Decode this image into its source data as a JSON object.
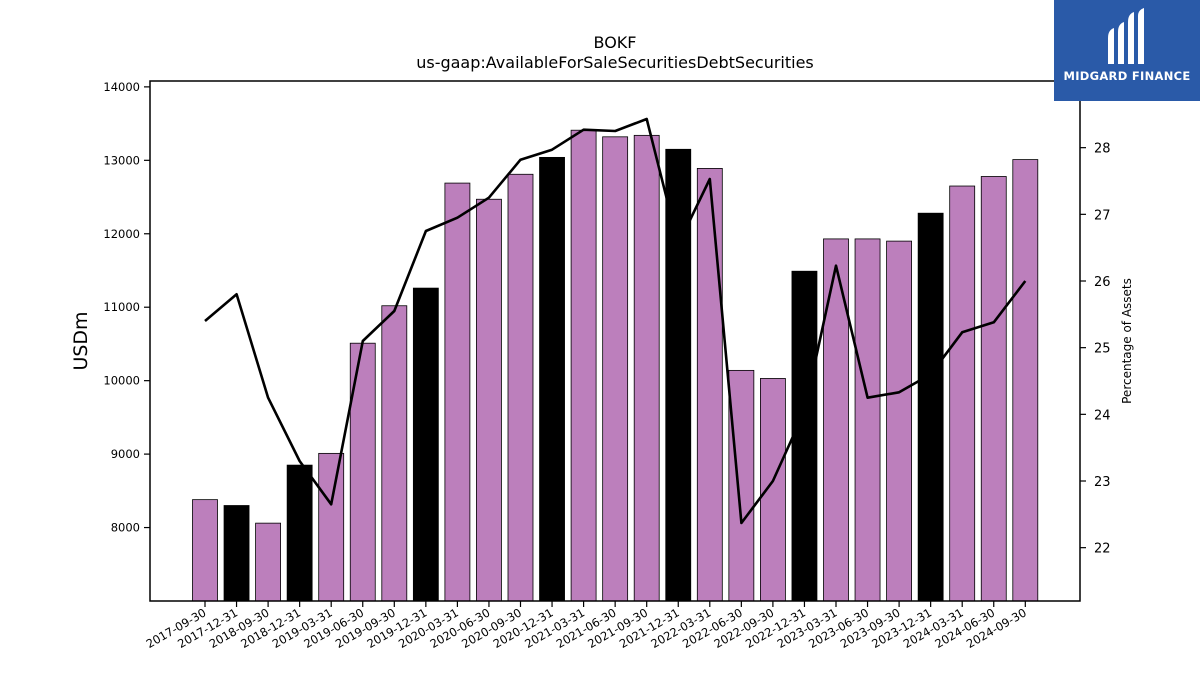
{
  "chart_data": {
    "type": "bar",
    "title": "BOKF",
    "subtitle": "us-gaap:AvailableForSaleSecuritiesDebtSecurities",
    "ylabel": "USDm",
    "y2label": "Percentage of Assets",
    "ylim": [
      7000,
      14080
    ],
    "y2lim": [
      21.2,
      29.0
    ],
    "yticks": [
      8000,
      9000,
      10000,
      11000,
      12000,
      13000,
      14000
    ],
    "y2ticks": [
      22,
      23,
      24,
      25,
      26,
      27,
      28
    ],
    "grid": false,
    "colors": {
      "bar_regular": "#bc7fbc",
      "bar_year_end": "#000000",
      "line": "#000000"
    },
    "categories": [
      "2017-09-30",
      "2017-12-31",
      "2018-09-30",
      "2018-12-31",
      "2019-03-31",
      "2019-06-30",
      "2019-09-30",
      "2019-12-31",
      "2020-03-31",
      "2020-06-30",
      "2020-09-30",
      "2020-12-31",
      "2021-03-31",
      "2021-06-30",
      "2021-09-30",
      "2021-12-31",
      "2022-03-31",
      "2022-06-30",
      "2022-09-30",
      "2022-12-31",
      "2023-03-31",
      "2023-06-30",
      "2023-09-30",
      "2023-12-31",
      "2024-03-31",
      "2024-06-30",
      "2024-09-30"
    ],
    "series": [
      {
        "type": "bar",
        "values": [
          8380,
          8300,
          8060,
          8850,
          9010,
          10510,
          11020,
          11260,
          12690,
          12470,
          12810,
          13040,
          13410,
          13320,
          13340,
          13150,
          12890,
          10140,
          10030,
          11490,
          11930,
          11930,
          11900,
          12280,
          12650,
          12780,
          13010
        ],
        "year_end": [
          false,
          true,
          false,
          true,
          false,
          false,
          false,
          true,
          false,
          false,
          false,
          true,
          false,
          false,
          false,
          true,
          false,
          false,
          false,
          true,
          false,
          false,
          false,
          true,
          false,
          false,
          false
        ]
      },
      {
        "type": "line",
        "axis": "right",
        "values": [
          25.4,
          25.8,
          24.25,
          23.3,
          22.65,
          25.1,
          25.55,
          26.75,
          26.95,
          27.25,
          27.82,
          27.97,
          28.27,
          28.25,
          28.43,
          26.55,
          27.53,
          22.37,
          23.0,
          24.05,
          26.23,
          24.25,
          24.33,
          24.6,
          25.23,
          25.38,
          26.0
        ]
      }
    ]
  },
  "logo": {
    "text": "MIDGARD FINANCE",
    "icon": "midgard-logo-icon",
    "color": "#2a5aa8"
  }
}
